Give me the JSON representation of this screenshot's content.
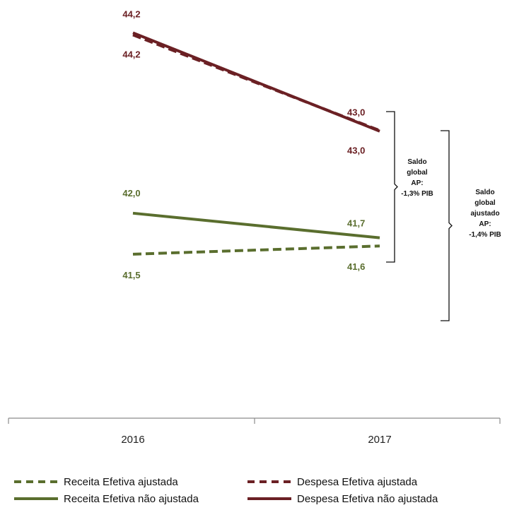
{
  "chart_data": {
    "type": "line",
    "categories": [
      "2016",
      "2017"
    ],
    "title": "",
    "xlabel": "",
    "ylabel": "",
    "ylim": [
      39.5,
      44.6
    ],
    "grid": false,
    "legend_position": "bottom",
    "series": [
      {
        "name": "Receita Efetiva ajustada",
        "values": [
          41.5,
          41.6
        ],
        "labels": [
          "41,5",
          "41,6"
        ],
        "color": "#5a6e2e",
        "dashed": true
      },
      {
        "name": "Receita Efetiva não ajustada",
        "values": [
          42.0,
          41.7
        ],
        "labels": [
          "42,0",
          "41,7"
        ],
        "color": "#5a6e2e",
        "dashed": false
      },
      {
        "name": "Despesa Efetiva ajustada",
        "values": [
          44.2,
          43.0
        ],
        "labels": [
          "44,2",
          "43,0"
        ],
        "color": "#6b2024",
        "dashed": true
      },
      {
        "name": "Despesa Efetiva não ajustada",
        "values": [
          44.2,
          43.0
        ],
        "labels": [
          "44,2",
          "43,0"
        ],
        "color": "#6b2024",
        "dashed": false
      }
    ],
    "annotations": [
      {
        "id": "saldo-global",
        "lines": [
          "Saldo",
          "global",
          "AP:",
          "-1,3% PIB"
        ]
      },
      {
        "id": "saldo-global-ajustado",
        "lines": [
          "Saldo",
          "global",
          "ajustado",
          "AP:",
          "-1,4% PIB"
        ]
      }
    ]
  },
  "colors": {
    "axis": "#8c8c8c",
    "text": "#111111"
  }
}
